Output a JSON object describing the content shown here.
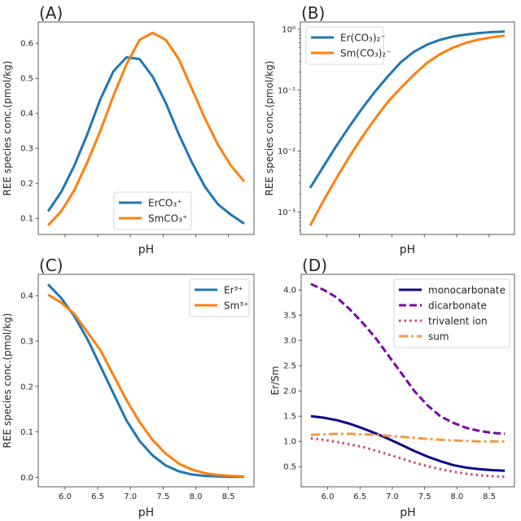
{
  "chart_data": [
    {
      "panel": "(A)",
      "type": "line",
      "xlabel": "pH",
      "ylabel": "REE species conc.(pmol/kg)",
      "x": [
        5.74,
        5.94,
        6.14,
        6.34,
        6.54,
        6.74,
        6.94,
        7.14,
        7.34,
        7.54,
        7.74,
        7.94,
        8.14,
        8.34,
        8.54,
        8.74
      ],
      "xlim": [
        5.59,
        8.89
      ],
      "ylim": [
        0.054,
        0.661
      ],
      "yscale": "linear",
      "yticks": [
        0.1,
        0.2,
        0.3,
        0.4,
        0.5,
        0.6
      ],
      "ytick_labels": [
        "0.1",
        "0.2",
        "0.3",
        "0.4",
        "0.5",
        "0.6"
      ],
      "xticks": [
        6.0,
        6.5,
        7.0,
        7.5,
        8.0,
        8.5
      ],
      "xtick_labels": [],
      "legend": "lower center",
      "series": [
        {
          "name": "ErCO₃⁺",
          "color": "#1f77b4",
          "style": "solid",
          "values": [
            0.12,
            0.175,
            0.25,
            0.34,
            0.44,
            0.52,
            0.56,
            0.555,
            0.505,
            0.43,
            0.34,
            0.26,
            0.19,
            0.14,
            0.11,
            0.085
          ]
        },
        {
          "name": "SmCO₃⁺",
          "color": "#ff7f0e",
          "style": "solid",
          "values": [
            0.08,
            0.12,
            0.18,
            0.26,
            0.35,
            0.45,
            0.54,
            0.61,
            0.63,
            0.61,
            0.555,
            0.47,
            0.385,
            0.31,
            0.25,
            0.205
          ]
        }
      ]
    },
    {
      "panel": "(B)",
      "type": "line",
      "xlabel": "pH",
      "ylabel": "REE species conc.(pmol/kg)",
      "x": [
        5.74,
        5.94,
        6.14,
        6.34,
        6.54,
        6.74,
        6.94,
        7.14,
        7.34,
        7.54,
        7.74,
        7.94,
        8.14,
        8.34,
        8.54,
        8.74
      ],
      "xlim": [
        5.59,
        8.89
      ],
      "ylim": [
        0.00043,
        1.32
      ],
      "yscale": "log",
      "yticks": [
        0.001,
        0.01,
        0.1,
        1
      ],
      "ytick_labels": [
        "10⁻³",
        "10⁻²",
        "10⁻¹",
        "10⁰"
      ],
      "xticks": [
        6.0,
        6.5,
        7.0,
        7.5,
        8.0,
        8.5
      ],
      "xtick_labels": [],
      "legend": "upper left",
      "series": [
        {
          "name": "Er(CO₃)₂⁻",
          "color": "#1f77b4",
          "style": "solid",
          "values": [
            0.0025,
            0.0055,
            0.012,
            0.025,
            0.05,
            0.095,
            0.17,
            0.29,
            0.43,
            0.56,
            0.67,
            0.76,
            0.82,
            0.87,
            0.9,
            0.92
          ]
        },
        {
          "name": "Sm(CO₃)₂⁻",
          "color": "#ff7f0e",
          "style": "solid",
          "values": [
            0.0006,
            0.0015,
            0.0035,
            0.008,
            0.017,
            0.034,
            0.065,
            0.11,
            0.18,
            0.28,
            0.39,
            0.5,
            0.6,
            0.68,
            0.74,
            0.79
          ]
        }
      ]
    },
    {
      "panel": "(C)",
      "type": "line",
      "xlabel": "pH",
      "ylabel": "REE species conc.(pmol/kg)",
      "x": [
        5.74,
        5.94,
        6.14,
        6.34,
        6.54,
        6.74,
        6.94,
        7.14,
        7.34,
        7.54,
        7.74,
        7.94,
        8.14,
        8.34,
        8.54,
        8.74
      ],
      "xlim": [
        5.59,
        8.89
      ],
      "ylim": [
        -0.021,
        0.447
      ],
      "yscale": "linear",
      "yticks": [
        0.0,
        0.1,
        0.2,
        0.3,
        0.4
      ],
      "ytick_labels": [
        "0.0",
        "0.1",
        "0.2",
        "0.3",
        "0.4"
      ],
      "xticks": [
        6.0,
        6.5,
        7.0,
        7.5,
        8.0,
        8.5
      ],
      "xtick_labels": [
        "6.0",
        "6.5",
        "7.0",
        "7.5",
        "8.0",
        "8.5"
      ],
      "legend": "upper right",
      "series": [
        {
          "name": "Er³⁺",
          "color": "#1f77b4",
          "style": "solid",
          "values": [
            0.425,
            0.395,
            0.355,
            0.305,
            0.245,
            0.185,
            0.125,
            0.08,
            0.048,
            0.026,
            0.013,
            0.006,
            0.003,
            0.002,
            0.001,
            0.001
          ]
        },
        {
          "name": "Sm³⁺",
          "color": "#ff7f0e",
          "style": "solid",
          "values": [
            0.402,
            0.385,
            0.36,
            0.32,
            0.28,
            0.225,
            0.17,
            0.122,
            0.082,
            0.052,
            0.03,
            0.017,
            0.009,
            0.005,
            0.003,
            0.002
          ]
        }
      ]
    },
    {
      "panel": "(D)",
      "type": "line",
      "xlabel": "pH",
      "ylabel": "Er/Sm",
      "x": [
        5.74,
        5.94,
        6.14,
        6.34,
        6.54,
        6.74,
        6.94,
        7.14,
        7.34,
        7.54,
        7.74,
        7.94,
        8.14,
        8.34,
        8.54,
        8.74
      ],
      "xlim": [
        5.59,
        8.89
      ],
      "ylim": [
        0.1,
        4.31
      ],
      "yscale": "linear",
      "yticks": [
        0.5,
        1.0,
        1.5,
        2.0,
        2.5,
        3.0,
        3.5,
        4.0
      ],
      "ytick_labels": [
        "0.5",
        "1.0",
        "1.5",
        "2.0",
        "2.5",
        "3.0",
        "3.5",
        "4.0"
      ],
      "xticks": [
        6.0,
        6.5,
        7.0,
        7.5,
        8.0,
        8.5
      ],
      "xtick_labels": [
        "6.0",
        "6.5",
        "7.0",
        "7.5",
        "8.0",
        "8.5"
      ],
      "legend": "upper right",
      "series": [
        {
          "name": "monocarbonate",
          "color": "#0d0887",
          "style": "solid",
          "values": [
            1.5,
            1.47,
            1.42,
            1.35,
            1.26,
            1.16,
            1.05,
            0.93,
            0.81,
            0.7,
            0.61,
            0.53,
            0.48,
            0.45,
            0.43,
            0.42
          ]
        },
        {
          "name": "dicarbonate",
          "color": "#7e03a8",
          "style": "dashed",
          "values": [
            4.12,
            4.0,
            3.85,
            3.62,
            3.35,
            3.05,
            2.7,
            2.35,
            2.0,
            1.72,
            1.5,
            1.37,
            1.27,
            1.21,
            1.17,
            1.15
          ]
        },
        {
          "name": "trivalent ion",
          "color": "#cc4778",
          "style": "dotted",
          "values": [
            1.06,
            1.03,
            0.99,
            0.94,
            0.89,
            0.82,
            0.74,
            0.66,
            0.58,
            0.51,
            0.45,
            0.4,
            0.36,
            0.33,
            0.31,
            0.3
          ]
        },
        {
          "name": "sum",
          "color": "#f89540",
          "style": "dashdot",
          "values": [
            1.13,
            1.14,
            1.15,
            1.15,
            1.14,
            1.13,
            1.11,
            1.09,
            1.07,
            1.05,
            1.03,
            1.02,
            1.01,
            1.0,
            1.0,
            1.0
          ]
        }
      ]
    }
  ]
}
